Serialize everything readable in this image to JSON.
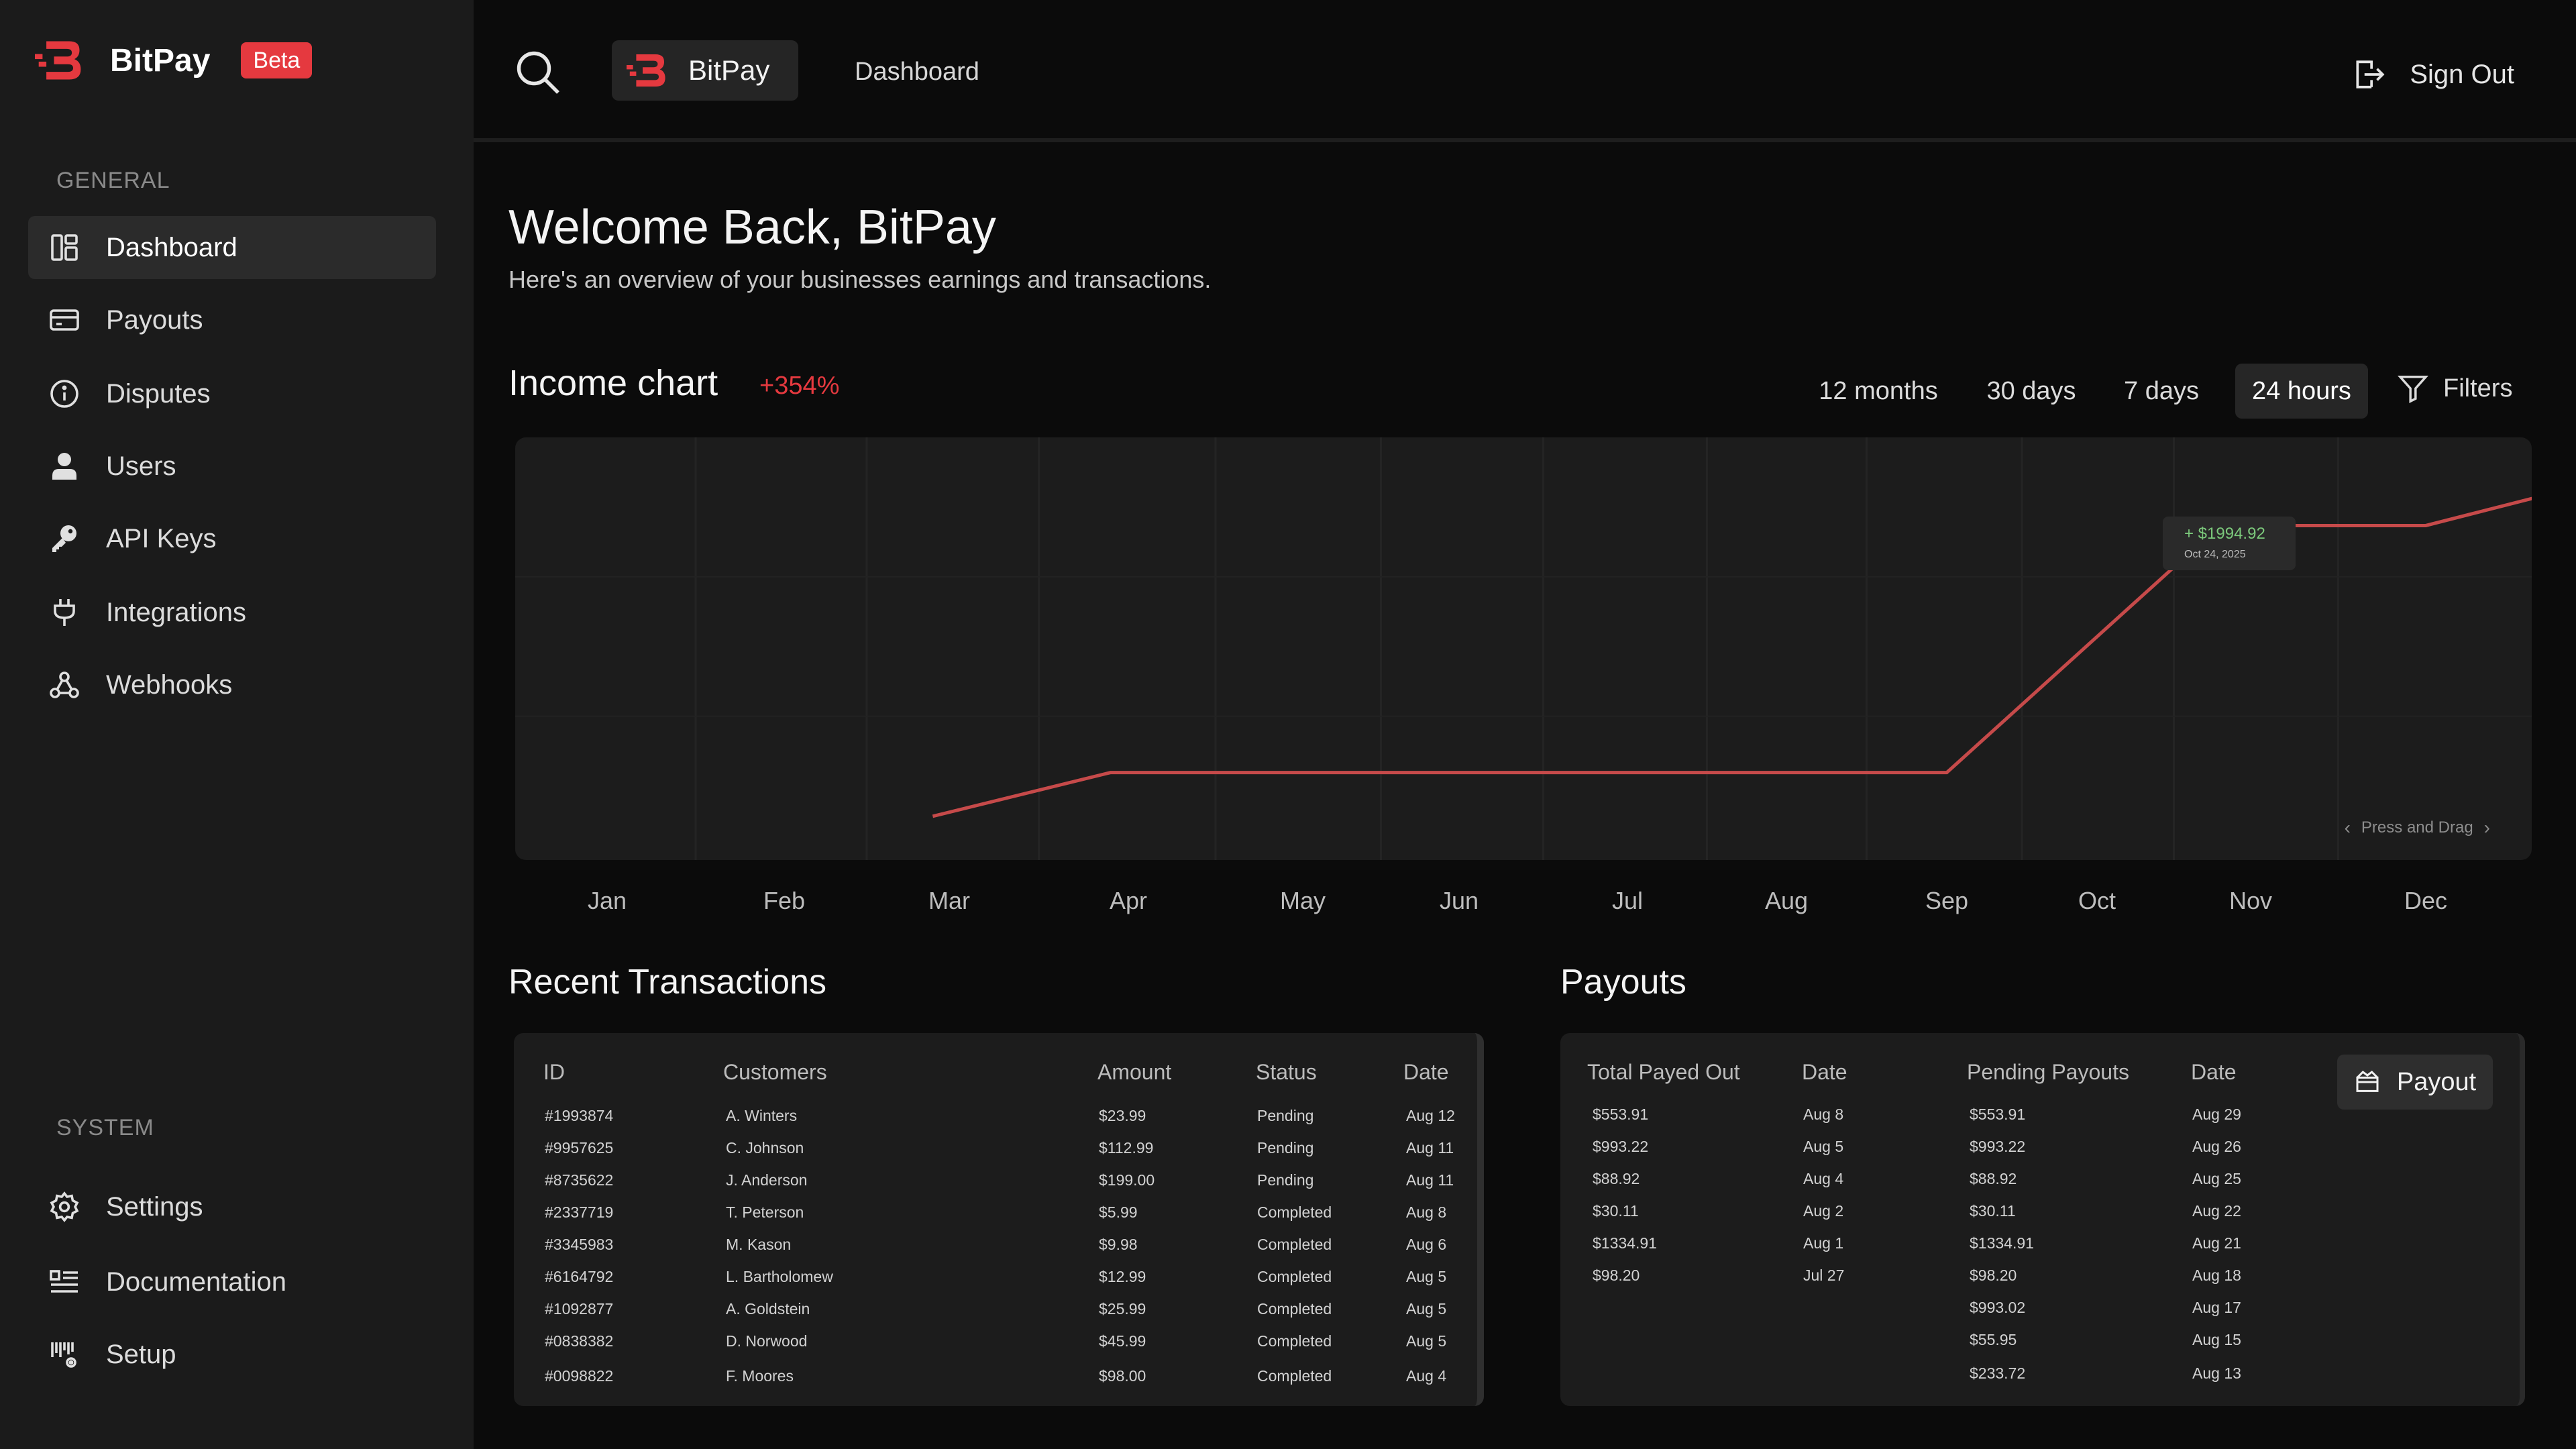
{
  "brand": {
    "name": "BitPay",
    "badge": "Beta"
  },
  "sidebar": {
    "general_label": "GENERAL",
    "system_label": "SYSTEM",
    "general_items": [
      {
        "label": "Dashboard",
        "icon": "dashboard-icon"
      },
      {
        "label": "Payouts",
        "icon": "card-icon"
      },
      {
        "label": "Disputes",
        "icon": "info-icon"
      },
      {
        "label": "Users",
        "icon": "user-icon"
      },
      {
        "label": "API Keys",
        "icon": "key-icon"
      },
      {
        "label": "Integrations",
        "icon": "plug-icon"
      },
      {
        "label": "Webhooks",
        "icon": "webhook-icon"
      }
    ],
    "system_items": [
      {
        "label": "Settings",
        "icon": "gear-icon"
      },
      {
        "label": "Documentation",
        "icon": "documentation-icon"
      },
      {
        "label": "Setup",
        "icon": "setup-icon"
      }
    ]
  },
  "header": {
    "org_name": "BitPay",
    "breadcrumb": "Dashboard",
    "signout_label": "Sign Out"
  },
  "main": {
    "welcome": "Welcome Back, BitPay",
    "subtitle": "Here's an overview of your businesses earnings and transactions."
  },
  "chart": {
    "title": "Income chart",
    "change": "+354%",
    "ranges": [
      "12 months",
      "30 days",
      "7 days",
      "24 hours"
    ],
    "active_range": "24 hours",
    "filters_label": "Filters",
    "press_and_drag": "Press and Drag",
    "accent_color": "#c64a4a",
    "tooltip": {
      "value": "+ $1994.92",
      "date": "Oct 24, 2025"
    }
  },
  "chart_data": {
    "type": "line",
    "title": "Income chart",
    "categories": [
      "Jan",
      "Feb",
      "Mar",
      "Apr",
      "May",
      "Jun",
      "Jul",
      "Aug",
      "Sep",
      "Oct",
      "Nov",
      "Dec"
    ],
    "series": [
      {
        "name": "Income",
        "x": [
          1.9,
          2.9,
          8.0,
          9.8,
          11.0,
          12.0
        ],
        "values": [
          0,
          300,
          300,
          1994.92,
          1994.92,
          2300
        ]
      }
    ],
    "xlabel": "",
    "ylabel": "",
    "ylim": [
      -300,
      2600
    ],
    "highlight": {
      "x": 9.8,
      "value": 1994.92,
      "label": "+ $1994.92",
      "date": "Oct 24, 2025"
    },
    "grid": true
  },
  "transactions": {
    "title": "Recent Transactions",
    "columns": [
      "ID",
      "Customers",
      "Amount",
      "Status",
      "Date"
    ],
    "rows": [
      [
        "#1993874",
        "A. Winters",
        "$23.99",
        "Pending",
        "Aug 12"
      ],
      [
        "#9957625",
        "C. Johnson",
        "$112.99",
        "Pending",
        "Aug 11"
      ],
      [
        "#8735622",
        "J. Anderson",
        "$199.00",
        "Pending",
        "Aug 11"
      ],
      [
        "#2337719",
        "T. Peterson",
        "$5.99",
        "Completed",
        "Aug 8"
      ],
      [
        "#3345983",
        "M. Kason",
        "$9.98",
        "Completed",
        "Aug 6"
      ],
      [
        "#6164792",
        "L. Bartholomew",
        "$12.99",
        "Completed",
        "Aug 5"
      ],
      [
        "#1092877",
        "A. Goldstein",
        "$25.99",
        "Completed",
        "Aug 5"
      ],
      [
        "#0838382",
        "D. Norwood",
        "$45.99",
        "Completed",
        "Aug 5"
      ],
      [
        "#0098822",
        "F. Moores",
        "$98.00",
        "Completed",
        "Aug 4"
      ]
    ]
  },
  "payouts": {
    "title": "Payouts",
    "button_label": "Payout",
    "columns": [
      "Total Payed Out",
      "Date",
      "Pending Payouts",
      "Date"
    ],
    "paid": [
      [
        "$553.91",
        "Aug 8"
      ],
      [
        "$993.22",
        "Aug 5"
      ],
      [
        "$88.92",
        "Aug 4"
      ],
      [
        "$30.11",
        "Aug 2"
      ],
      [
        "$1334.91",
        "Aug 1"
      ],
      [
        "$98.20",
        "Jul 27"
      ]
    ],
    "pending": [
      [
        "$553.91",
        "Aug 29"
      ],
      [
        "$993.22",
        "Aug 26"
      ],
      [
        "$88.92",
        "Aug 25"
      ],
      [
        "$30.11",
        "Aug 22"
      ],
      [
        "$1334.91",
        "Aug 21"
      ],
      [
        "$98.20",
        "Aug 18"
      ],
      [
        "$993.02",
        "Aug 17"
      ],
      [
        "$55.95",
        "Aug 15"
      ],
      [
        "$233.72",
        "Aug 13"
      ]
    ]
  }
}
